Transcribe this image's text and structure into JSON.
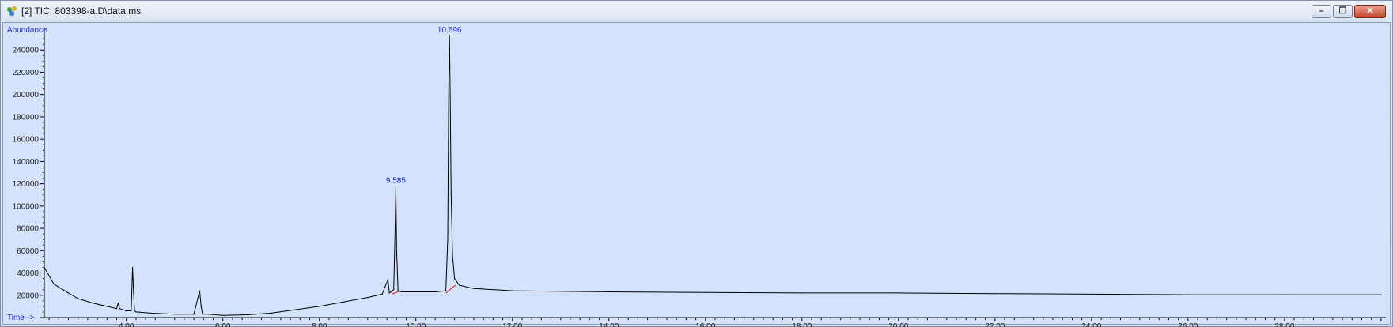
{
  "window": {
    "title": "[2] TIC: 803398-a.D\\data.ms",
    "icons": [
      "chemstation-app-icon",
      "minimize-icon",
      "restore-icon",
      "close-icon"
    ]
  },
  "chart_data": {
    "type": "line",
    "title": "",
    "xlabel": "Time-->",
    "ylabel": "Abundance",
    "xlim": [
      2.3,
      30.1
    ],
    "ylim": [
      0,
      260000
    ],
    "x_ticks": [
      "4.00",
      "6.00",
      "8.00",
      "10.00",
      "12.00",
      "14.00",
      "16.00",
      "18.00",
      "20.00",
      "22.00",
      "24.00",
      "26.00",
      "28.00"
    ],
    "y_ticks": [
      "20000",
      "40000",
      "60000",
      "80000",
      "100000",
      "120000",
      "140000",
      "160000",
      "180000",
      "200000",
      "220000",
      "240000"
    ],
    "grid": false,
    "colors": {
      "trace": "#000000",
      "annotation": "#1a2bd8",
      "baseline": "#e02020",
      "background": "#d4e3fb"
    },
    "series": [
      {
        "x": [
          2.3,
          2.5,
          2.8,
          3.0,
          3.3,
          3.6,
          3.8,
          3.83,
          3.86,
          4.0,
          4.1,
          4.13,
          4.15,
          4.17,
          4.2,
          4.5,
          5.0,
          5.4,
          5.52,
          5.55,
          5.58,
          5.7,
          6.0,
          6.5,
          7.0,
          7.5,
          8.0,
          8.5,
          9.0,
          9.3,
          9.42,
          9.45,
          9.48,
          9.54,
          9.57,
          9.585,
          9.6,
          9.63,
          9.7,
          10.0,
          10.4,
          10.62,
          10.66,
          10.68,
          10.696,
          10.71,
          10.73,
          10.76,
          10.8,
          10.9,
          11.2,
          12.0,
          14.0,
          16.0,
          18.0,
          20.0,
          22.0,
          24.0,
          26.0,
          28.0,
          30.0
        ],
        "y": [
          45000,
          30000,
          22000,
          17000,
          13000,
          10000,
          8000,
          13000,
          8000,
          6000,
          6000,
          45000,
          22000,
          6000,
          5000,
          4000,
          3000,
          3000,
          24000,
          10000,
          3000,
          3000,
          2000,
          2500,
          4000,
          7000,
          10000,
          14000,
          18000,
          21000,
          34000,
          22000,
          23000,
          25000,
          80000,
          118000,
          60000,
          24000,
          23000,
          23000,
          23000,
          24000,
          70000,
          198000,
          253000,
          200000,
          110000,
          55000,
          35000,
          29000,
          26000,
          24000,
          23000,
          22500,
          22000,
          22000,
          21500,
          21000,
          20500,
          20500,
          20500
        ]
      }
    ],
    "annotations": [
      {
        "x": 9.585,
        "y": 118000,
        "label": "9.585"
      },
      {
        "x": 10.696,
        "y": 253000,
        "label": "10.696"
      }
    ],
    "baselines": [
      {
        "x": [
          9.5,
          9.68
        ],
        "y": [
          21000,
          24000
        ]
      },
      {
        "x": [
          10.62,
          10.82
        ],
        "y": [
          22000,
          29000
        ]
      }
    ]
  }
}
